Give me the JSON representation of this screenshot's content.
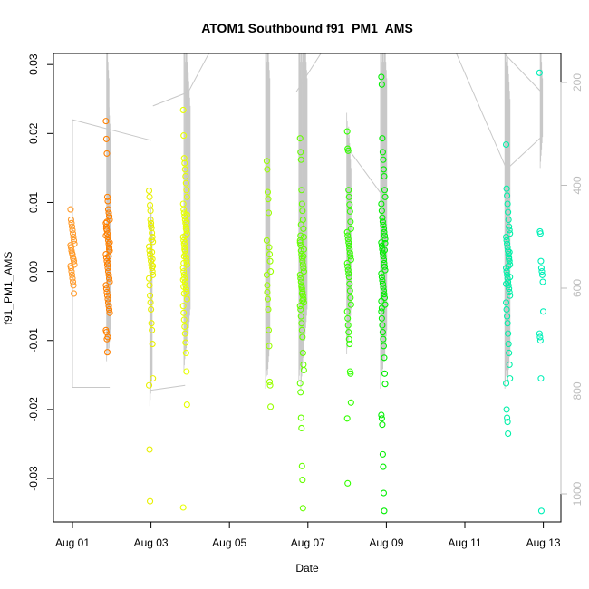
{
  "chart_data": {
    "type": "scatter",
    "title": "ATOM1 Southbound f91_PM1_AMS",
    "xlabel": "Date",
    "ylabel": "f91_PM1_AMS",
    "xlim": [
      "2017-08-00.6",
      "2017-08-13.5"
    ],
    "ylim": [
      -0.0363,
      0.0316
    ],
    "x_ticks": [
      "Aug 01",
      "Aug 03",
      "Aug 05",
      "Aug 07",
      "Aug 09",
      "Aug 11",
      "Aug 13"
    ],
    "y_ticks": [
      -0.03,
      -0.02,
      -0.01,
      0.0,
      0.01,
      0.02,
      0.03
    ],
    "y_tick_labels": [
      "-0.03",
      "-0.02",
      "-0.01",
      "0.00",
      "0.01",
      "0.02",
      "0.03"
    ],
    "secondary_axis": {
      "side": "right",
      "color": "#bdbdbd",
      "range": [
        1040,
        135
      ],
      "ticks": [
        200,
        400,
        600,
        800,
        1000
      ],
      "tick_labels": [
        "200",
        "400",
        "600",
        "800",
        "1000"
      ],
      "series_color": "#c8c8c8"
    },
    "grid": false,
    "legend": "none",
    "colors": {
      "orange": "#ff8c1a",
      "dark_orange": "#ff7f00",
      "yellow": "#e6ff00",
      "light_green": "#7fff00",
      "green": "#00e600",
      "teal": "#00f5b5"
    },
    "groups": [
      {
        "day": 1.0,
        "color": "#ff9a2a",
        "values": [
          0.009,
          0.0075,
          0.007,
          0.0065,
          0.006,
          0.0055,
          0.005,
          0.0045,
          0.004,
          0.0038,
          0.0035,
          0.003,
          0.0027,
          0.0025,
          0.002,
          0.0018,
          0.0015,
          0.001,
          0.0008,
          0.0005,
          0.0,
          -0.0005,
          -0.001,
          -0.0015,
          -0.002,
          -0.0032
        ]
      },
      {
        "day": 1.9,
        "color": "#ff8000",
        "values": [
          0.0218,
          0.0192,
          0.0171,
          0.0108,
          0.0102,
          0.009,
          0.0085,
          0.008,
          0.0075,
          0.007,
          0.0065,
          0.006,
          0.0055,
          0.005,
          0.0045,
          0.004,
          0.0035,
          0.003,
          0.0025,
          0.002,
          0.0015,
          0.001,
          0.0005,
          0.0,
          -0.0005,
          -0.001,
          -0.0015,
          -0.002,
          -0.0025,
          -0.003,
          -0.0035,
          -0.004,
          -0.0045,
          -0.005,
          -0.0055,
          -0.006,
          -0.0085,
          -0.0088,
          -0.0098,
          -0.0117,
          -0.0095,
          0.0012,
          0.0022,
          0.0032,
          0.0042,
          0.0052,
          0.0062,
          0.0072
        ]
      },
      {
        "day": 3.0,
        "color": "#e8f000",
        "values": [
          0.0117,
          0.0108,
          0.0096,
          0.0075,
          0.007,
          0.0063,
          0.0056,
          0.005,
          0.0043,
          0.0036,
          0.003,
          0.0025,
          0.002,
          0.0015,
          0.001,
          0.0005,
          0.0,
          -0.0005,
          -0.001,
          -0.002,
          -0.0035,
          -0.0045,
          -0.0055,
          -0.0075,
          -0.0085,
          -0.0105,
          -0.0155,
          -0.0165,
          -0.0258,
          -0.0333,
          0.0088,
          0.0066,
          0.0046,
          0.0028,
          0.0018,
          0.0008
        ]
      },
      {
        "day": 3.87,
        "color": "#e6ff00",
        "values": [
          0.0234,
          0.0197,
          0.0164,
          0.0157,
          0.0148,
          0.0138,
          0.0128,
          0.0118,
          0.0108,
          0.0098,
          0.009,
          0.0085,
          0.008,
          0.0075,
          0.007,
          0.0065,
          0.006,
          0.0055,
          0.005,
          0.0045,
          0.004,
          0.0035,
          0.003,
          0.0025,
          0.002,
          0.0015,
          0.001,
          0.0005,
          0.0,
          -0.0005,
          -0.001,
          -0.0015,
          -0.002,
          -0.0025,
          -0.003,
          -0.004,
          -0.005,
          -0.006,
          -0.007,
          -0.008,
          -0.009,
          -0.0103,
          -0.0118,
          -0.0145,
          -0.0193,
          -0.0342,
          0.0012,
          0.0022,
          0.0032,
          0.0042,
          0.0052,
          0.0062,
          0.0072,
          0.0082,
          -0.0012,
          -0.0022,
          -0.0032
        ]
      },
      {
        "day": 6.0,
        "color": "#9aff00",
        "values": [
          0.016,
          0.0148,
          0.0115,
          0.0105,
          0.0085,
          0.0035,
          0.0025,
          0.0015,
          0.0,
          -0.0005,
          -0.002,
          -0.004,
          -0.0055,
          -0.0085,
          -0.0108,
          -0.016,
          -0.0165,
          -0.0196,
          0.0045,
          -0.003
        ]
      },
      {
        "day": 6.85,
        "color": "#66ff00",
        "values": [
          0.0193,
          0.0173,
          0.0162,
          0.0118,
          0.0098,
          0.0088,
          0.0075,
          0.0062,
          0.005,
          0.0045,
          0.0038,
          0.003,
          0.0025,
          0.002,
          0.0015,
          0.001,
          0.0005,
          0.0,
          -0.0005,
          -0.001,
          -0.0015,
          -0.002,
          -0.0025,
          -0.003,
          -0.0035,
          -0.004,
          -0.0045,
          -0.005,
          -0.0055,
          -0.0065,
          -0.0075,
          -0.0085,
          -0.0095,
          -0.0118,
          -0.0135,
          -0.0143,
          -0.0162,
          -0.0175,
          -0.0212,
          -0.0227,
          -0.0282,
          -0.0302,
          -0.0343,
          0.0022,
          0.0032,
          0.0042,
          0.0052,
          0.0068,
          -0.0022,
          -0.0032,
          -0.0042
        ]
      },
      {
        "day": 8.05,
        "color": "#33ff00",
        "values": [
          0.0203,
          0.0178,
          0.0175,
          0.0118,
          0.0108,
          0.0097,
          0.0087,
          0.0072,
          0.0062,
          0.0057,
          0.0052,
          0.0047,
          0.0042,
          0.0037,
          0.0032,
          0.0027,
          0.0022,
          0.0017,
          0.0012,
          0.0007,
          0.0002,
          -0.0003,
          -0.0008,
          -0.0018,
          -0.0028,
          -0.0038,
          -0.0048,
          -0.0058,
          -0.0068,
          -0.0078,
          -0.0088,
          -0.0098,
          -0.0105,
          -0.0145,
          -0.0148,
          -0.019,
          -0.0213,
          -0.0307
        ]
      },
      {
        "day": 8.92,
        "color": "#00ee00",
        "values": [
          0.0282,
          0.0271,
          0.0193,
          0.0173,
          0.0162,
          0.0148,
          0.0138,
          0.0118,
          0.0108,
          0.0098,
          0.0088,
          0.0078,
          0.0072,
          0.0067,
          0.0062,
          0.0057,
          0.0052,
          0.0047,
          0.0042,
          0.0037,
          0.0032,
          0.0027,
          0.0022,
          0.0017,
          0.0012,
          0.0007,
          0.0002,
          -0.0003,
          -0.0008,
          -0.0013,
          -0.0018,
          -0.0023,
          -0.0028,
          -0.0033,
          -0.0038,
          -0.0048,
          -0.0058,
          -0.0068,
          -0.0078,
          -0.0088,
          -0.0098,
          -0.0108,
          -0.0125,
          -0.0148,
          -0.0163,
          -0.0208,
          -0.0213,
          -0.0222,
          -0.0265,
          -0.0283,
          -0.0321,
          -0.0347,
          0.0031,
          0.0041,
          -0.0043,
          -0.0053
        ]
      },
      {
        "day": 12.1,
        "color": "#00f0a8",
        "values": [
          0.0184,
          0.012,
          0.011,
          0.0098,
          0.0086,
          0.0075,
          0.0065,
          0.006,
          0.0055,
          0.005,
          0.0045,
          0.004,
          0.0035,
          0.003,
          0.0025,
          0.002,
          0.0015,
          0.001,
          0.0005,
          0.0,
          -0.0005,
          -0.001,
          -0.0015,
          -0.002,
          -0.0025,
          -0.003,
          -0.0035,
          -0.0045,
          -0.0055,
          -0.0065,
          -0.0075,
          -0.009,
          -0.0105,
          -0.0118,
          -0.0135,
          -0.0155,
          -0.0162,
          -0.02,
          -0.0212,
          -0.0218,
          -0.0235,
          0.0008,
          0.0018,
          0.0028,
          -0.0008,
          -0.0018
        ]
      },
      {
        "day": 12.95,
        "color": "#00f0b8",
        "values": [
          0.0288,
          0.0058,
          0.0055,
          0.0015,
          0.0005,
          0.0,
          -0.0005,
          -0.0015,
          -0.0058,
          -0.009,
          -0.0095,
          -0.01,
          -0.0155,
          -0.0347
        ]
      }
    ]
  }
}
